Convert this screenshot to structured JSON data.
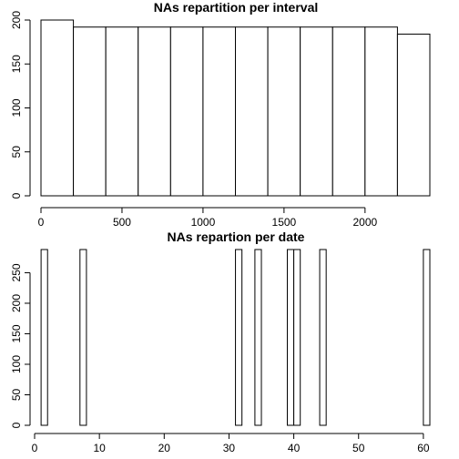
{
  "chart_data": [
    {
      "type": "bar",
      "title": "NAs repartition per interval",
      "xlabel": "",
      "ylabel": "",
      "bin_edges": [
        0,
        200,
        400,
        600,
        800,
        1000,
        1200,
        1400,
        1600,
        1800,
        2000,
        2200,
        2400
      ],
      "values": [
        200,
        192,
        192,
        192,
        192,
        192,
        192,
        192,
        192,
        192,
        192,
        184
      ],
      "xlim": [
        0,
        2400
      ],
      "ylim": [
        0,
        200
      ],
      "x_ticks": [
        0,
        500,
        1000,
        1500,
        2000
      ],
      "y_ticks": [
        0,
        50,
        100,
        150,
        200
      ],
      "grid": false,
      "legend": "none"
    },
    {
      "type": "bar",
      "title": "NAs repartion per date",
      "xlabel": "",
      "ylabel": "",
      "bars": [
        {
          "x0": 1,
          "x1": 2,
          "value": 288
        },
        {
          "x0": 7,
          "x1": 8,
          "value": 288
        },
        {
          "x0": 31,
          "x1": 32,
          "value": 288
        },
        {
          "x0": 34,
          "x1": 35,
          "value": 288
        },
        {
          "x0": 39,
          "x1": 40,
          "value": 288
        },
        {
          "x0": 40,
          "x1": 41,
          "value": 288
        },
        {
          "x0": 44,
          "x1": 45,
          "value": 288
        },
        {
          "x0": 60,
          "x1": 61,
          "value": 288
        }
      ],
      "xlim": [
        0,
        61
      ],
      "ylim": [
        0,
        288
      ],
      "x_ticks": [
        0,
        10,
        20,
        30,
        40,
        50,
        60
      ],
      "y_ticks": [
        0,
        50,
        100,
        150,
        200,
        250
      ],
      "grid": false,
      "legend": "none"
    }
  ]
}
